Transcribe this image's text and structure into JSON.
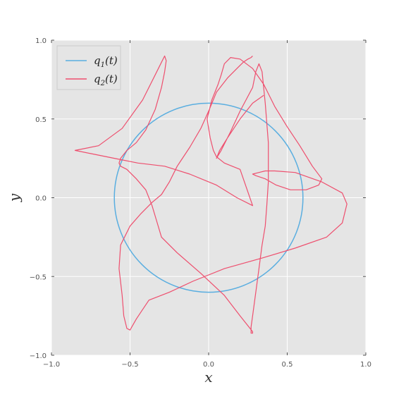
{
  "chart_data": {
    "type": "line",
    "xlabel": "x",
    "ylabel": "y",
    "xlim": [
      -1.0,
      1.0
    ],
    "ylim": [
      -1.0,
      1.0
    ],
    "xticks": [
      "−1.0",
      "−0.5",
      "0.0",
      "0.5",
      "1.0"
    ],
    "xtick_values": [
      -1.0,
      -0.5,
      0.0,
      0.5,
      1.0
    ],
    "yticks": [
      "−1.0",
      "−0.5",
      "0.0",
      "0.5",
      "1.0"
    ],
    "ytick_values": [
      -1.0,
      -0.5,
      0.0,
      0.5,
      1.0
    ],
    "grid": true,
    "legend_position": "top-left",
    "background_color": "#e5e5e5",
    "series": [
      {
        "name": "q_1(t)",
        "legend_main": "q",
        "legend_sub": "1",
        "legend_suffix": "(t)",
        "color": "#5aaee0",
        "kind": "circle",
        "center": [
          0.0,
          0.0
        ],
        "radius": 0.6
      },
      {
        "name": "q_2(t)",
        "legend_main": "q",
        "legend_sub": "2",
        "legend_suffix": "(t)",
        "color": "#ee4f6e",
        "kind": "polyline",
        "x": [
          0.35,
          0.28,
          0.2,
          0.12,
          0.07,
          0.05,
          0.08,
          0.14,
          0.2,
          0.28,
          0.3,
          0.32,
          0.34,
          0.36,
          0.38,
          0.38,
          0.37,
          0.36,
          0.34,
          0.32,
          0.3,
          0.28,
          0.27,
          0.27,
          0.28,
          0.28,
          0.2,
          0.1,
          -0.05,
          -0.2,
          -0.3,
          -0.33,
          -0.36,
          -0.4,
          -0.46,
          -0.52,
          -0.56,
          -0.57,
          -0.56,
          -0.52,
          -0.46,
          -0.4,
          -0.34,
          -0.3,
          -0.28,
          -0.27,
          -0.28,
          -0.3,
          -0.34,
          -0.42,
          -0.55,
          -0.7,
          -0.85,
          -0.75,
          -0.6,
          -0.45,
          -0.28,
          -0.12,
          0.05,
          0.18,
          0.28,
          0.2,
          0.15,
          0.1,
          0.05,
          0.03,
          0.01,
          -0.01,
          0.02,
          0.06,
          0.08,
          0.1,
          0.14,
          0.2,
          0.28,
          0.35,
          0.42,
          0.5,
          0.58,
          0.66,
          0.72,
          0.7,
          0.62,
          0.52,
          0.43,
          0.36,
          0.3,
          0.28,
          0.32,
          0.36,
          0.42,
          0.55,
          0.72,
          0.85,
          0.88,
          0.85,
          0.75,
          0.55,
          0.35,
          0.1,
          -0.1,
          -0.25,
          -0.38,
          -0.42,
          -0.46,
          -0.5,
          -0.52,
          -0.54,
          -0.55,
          -0.57,
          -0.56,
          -0.5,
          -0.43,
          -0.36,
          -0.3,
          -0.25,
          -0.2,
          -0.12,
          -0.05,
          0.0,
          0.05,
          0.12,
          0.18,
          0.22,
          0.25,
          0.27,
          0.28
        ],
        "y": [
          0.65,
          0.6,
          0.5,
          0.38,
          0.3,
          0.25,
          0.3,
          0.42,
          0.55,
          0.7,
          0.8,
          0.85,
          0.8,
          0.6,
          0.35,
          0.1,
          -0.05,
          -0.18,
          -0.3,
          -0.45,
          -0.6,
          -0.75,
          -0.82,
          -0.86,
          -0.86,
          -0.85,
          -0.75,
          -0.62,
          -0.48,
          -0.35,
          -0.25,
          -0.15,
          -0.05,
          0.05,
          0.12,
          0.18,
          0.2,
          0.22,
          0.25,
          0.3,
          0.35,
          0.43,
          0.56,
          0.7,
          0.8,
          0.87,
          0.9,
          0.86,
          0.78,
          0.62,
          0.44,
          0.33,
          0.3,
          0.28,
          0.25,
          0.22,
          0.2,
          0.15,
          0.08,
          0.0,
          -0.05,
          0.18,
          0.2,
          0.22,
          0.26,
          0.3,
          0.38,
          0.5,
          0.62,
          0.72,
          0.78,
          0.85,
          0.89,
          0.88,
          0.82,
          0.72,
          0.58,
          0.45,
          0.33,
          0.2,
          0.12,
          0.08,
          0.05,
          0.05,
          0.08,
          0.12,
          0.14,
          0.15,
          0.16,
          0.17,
          0.17,
          0.16,
          0.1,
          0.03,
          -0.04,
          -0.16,
          -0.25,
          -0.32,
          -0.38,
          -0.45,
          -0.53,
          -0.6,
          -0.65,
          -0.71,
          -0.77,
          -0.84,
          -0.83,
          -0.75,
          -0.62,
          -0.45,
          -0.3,
          -0.18,
          -0.1,
          -0.03,
          0.02,
          0.1,
          0.2,
          0.32,
          0.44,
          0.55,
          0.67,
          0.76,
          0.82,
          0.86,
          0.88,
          0.89,
          0.9
        ]
      }
    ]
  }
}
